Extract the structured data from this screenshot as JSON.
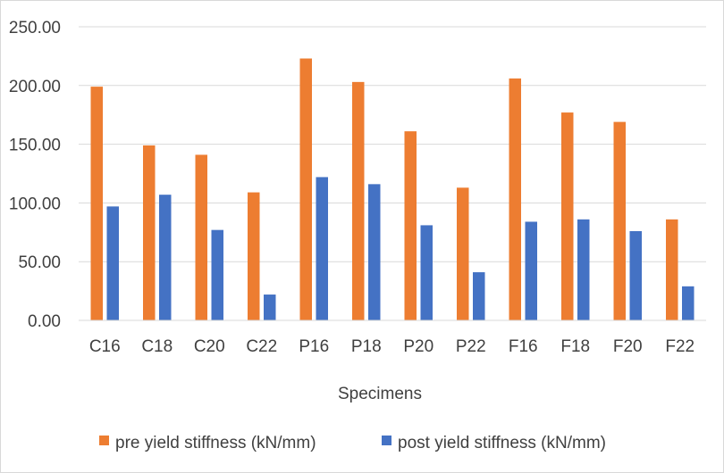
{
  "chart_data": {
    "type": "bar",
    "xlabel": "Specimens",
    "ylabel": "",
    "ylim": [
      0,
      250
    ],
    "yticks": [
      "0.00",
      "50.00",
      "100.00",
      "150.00",
      "200.00",
      "250.00"
    ],
    "grid": true,
    "legend_position": "bottom",
    "categories": [
      "C16",
      "C18",
      "C20",
      "C22",
      "P16",
      "P18",
      "P20",
      "P22",
      "F16",
      "F18",
      "F20",
      "F22"
    ],
    "series": [
      {
        "name": "pre yield stiffness (kN/mm)",
        "color": "#ED7D31",
        "values": [
          199,
          149,
          141,
          109,
          223,
          203,
          161,
          113,
          206,
          177,
          169,
          86
        ]
      },
      {
        "name": "post yield stiffness (kN/mm)",
        "color": "#4472C4",
        "values": [
          97,
          107,
          77,
          22,
          122,
          116,
          81,
          41,
          84,
          86,
          76,
          29
        ]
      }
    ]
  }
}
